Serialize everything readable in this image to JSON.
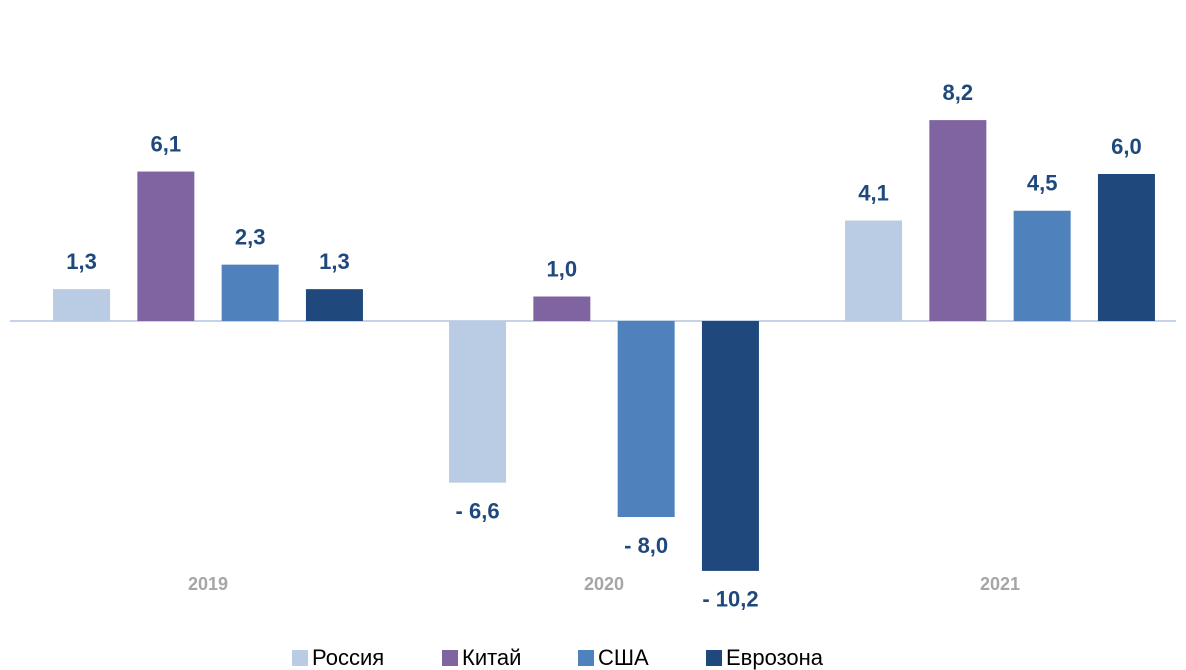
{
  "chart_data": {
    "type": "bar",
    "categories": [
      "2019",
      "2020",
      "2021"
    ],
    "series": [
      {
        "name": "Россия",
        "color": "#b9cce4",
        "values": [
          1.3,
          -6.6,
          4.1
        ],
        "value_labels": [
          "1,3",
          "- 6,6",
          "4,1"
        ]
      },
      {
        "name": "Китай",
        "color": "#8064a2",
        "values": [
          6.1,
          1.0,
          8.2
        ],
        "value_labels": [
          "6,1",
          "1,0",
          "8,2"
        ]
      },
      {
        "name": "США",
        "color": "#4f81bd",
        "values": [
          2.3,
          -8.0,
          4.5
        ],
        "value_labels": [
          "2,3",
          "- 8,0",
          "4,5"
        ]
      },
      {
        "name": "Еврозона",
        "color": "#1f497d",
        "values": [
          1.3,
          -10.2,
          6.0
        ],
        "value_labels": [
          "1,3",
          "- 10,2",
          "6,0"
        ]
      }
    ],
    "legend": "bottom"
  }
}
